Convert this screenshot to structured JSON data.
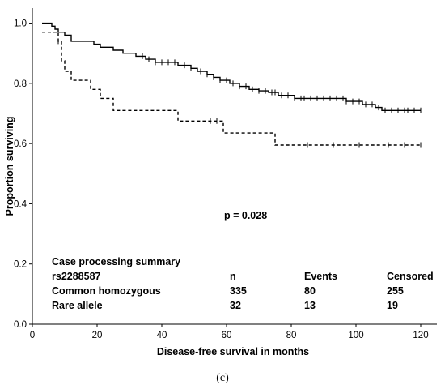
{
  "chart_data": {
    "type": "line",
    "subtype": "kaplan-meier",
    "xlabel": "Disease-free survival in months",
    "ylabel": "Proportion surviving",
    "xlim": [
      0,
      125
    ],
    "ylim": [
      0.0,
      1.05
    ],
    "x_ticks": [
      "0",
      "20",
      "40",
      "60",
      "80",
      "100",
      "120"
    ],
    "y_ticks": [
      "0.0",
      "0.2",
      "0.4",
      "0.6",
      "0.8",
      "1.0"
    ],
    "x_tick_values": [
      0,
      20,
      40,
      60,
      80,
      100,
      120
    ],
    "y_tick_values": [
      0.0,
      0.2,
      0.4,
      0.6,
      0.8,
      1.0
    ],
    "grid": false,
    "series": [
      {
        "style": "solid",
        "steps": [
          [
            3,
            1.0
          ],
          [
            6,
            0.99
          ],
          [
            7,
            0.98
          ],
          [
            8,
            0.97
          ],
          [
            10,
            0.96
          ],
          [
            12,
            0.94
          ],
          [
            19,
            0.93
          ],
          [
            21,
            0.92
          ],
          [
            25,
            0.91
          ],
          [
            28,
            0.9
          ],
          [
            32,
            0.89
          ],
          [
            35,
            0.88
          ],
          [
            38,
            0.87
          ],
          [
            45,
            0.86
          ],
          [
            49,
            0.85
          ],
          [
            51,
            0.84
          ],
          [
            54,
            0.83
          ],
          [
            56,
            0.82
          ],
          [
            58,
            0.81
          ],
          [
            61,
            0.8
          ],
          [
            64,
            0.79
          ],
          [
            67,
            0.78
          ],
          [
            70,
            0.775
          ],
          [
            73,
            0.77
          ],
          [
            76,
            0.76
          ],
          [
            81,
            0.75
          ],
          [
            97,
            0.74
          ],
          [
            102,
            0.73
          ],
          [
            106,
            0.72
          ],
          [
            108,
            0.71
          ],
          [
            120,
            0.71
          ]
        ],
        "censored": [
          34,
          36,
          38,
          40,
          42,
          44,
          47,
          49,
          52,
          54,
          56,
          58,
          60,
          62,
          64,
          66,
          68,
          70,
          72,
          74,
          75,
          77,
          79,
          81,
          83,
          84,
          86,
          88,
          90,
          92,
          94,
          96,
          97,
          99,
          101,
          103,
          105,
          107,
          109,
          111,
          113,
          115,
          116,
          118,
          120
        ]
      },
      {
        "style": "dashed",
        "steps": [
          [
            3,
            0.97
          ],
          [
            8,
            0.94
          ],
          [
            9,
            0.875
          ],
          [
            10,
            0.84
          ],
          [
            12,
            0.81
          ],
          [
            18,
            0.78
          ],
          [
            21,
            0.75
          ],
          [
            25,
            0.71
          ],
          [
            45,
            0.675
          ],
          [
            59,
            0.635
          ],
          [
            75,
            0.595
          ],
          [
            120,
            0.595
          ]
        ],
        "censored": [
          8,
          55,
          57,
          85,
          93,
          101,
          110,
          115,
          120
        ]
      }
    ],
    "annotation": "p = 0.028",
    "summary_table": {
      "title": "Case processing summary",
      "columns": [
        "rs2288587",
        "n",
        "Events",
        "Censored"
      ],
      "rows": [
        [
          "Common homozygous",
          "335",
          "80",
          "255"
        ],
        [
          "Rare allele",
          "32",
          "13",
          "19"
        ]
      ]
    },
    "panel_label": "(c)"
  }
}
